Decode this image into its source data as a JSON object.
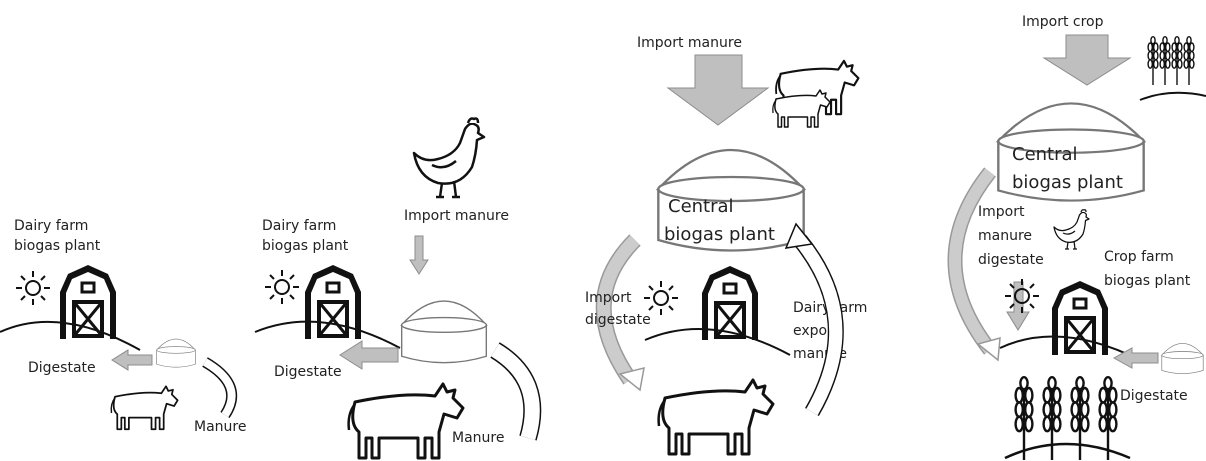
{
  "panels": [
    {
      "labels": [
        "Dairy farm",
        "biogas plant",
        "Digestate",
        "Manure"
      ]
    },
    {
      "labels": [
        "Dairy farm",
        "biogas plant",
        "Import manure",
        "Digestate",
        "Manure"
      ]
    },
    {
      "labels": [
        "Import manure",
        "Central",
        "biogas plant",
        "Import",
        "digestate",
        "Dairy farm",
        "export",
        "manure"
      ]
    },
    {
      "labels": [
        "Import crop",
        "Central",
        "biogas plant",
        "Import",
        "manure",
        "digestate",
        "Crop farm",
        "biogas plant",
        "Digestate"
      ]
    }
  ]
}
